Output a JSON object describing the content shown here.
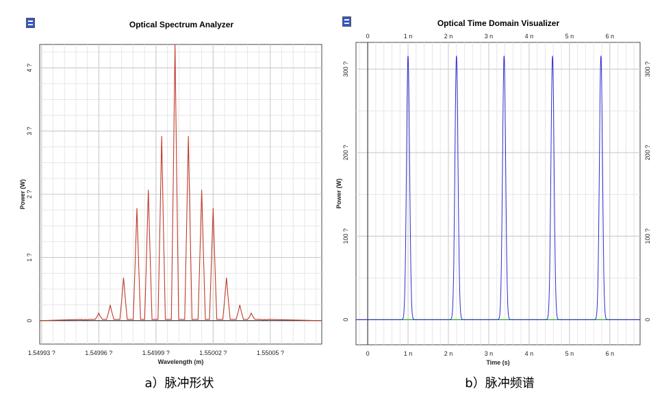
{
  "captions": {
    "a": "a）脉冲形状",
    "b": "b）脉冲频谱"
  },
  "chart_data": [
    {
      "type": "line",
      "title": "Optical Spectrum Analyzer",
      "xlabel": "Wavelength (m)",
      "ylabel": "Power (W)",
      "xlim": [
        1.549929,
        1.550077
      ],
      "ylim": [
        -0.37,
        4.37
      ],
      "xticks": [
        1.54993,
        1.54996,
        1.54999,
        1.55002,
        1.55005
      ],
      "xtick_labels": [
        "1.54993 ?",
        "1.54996 ?",
        "1.54999 ?",
        "1.55002 ?",
        "1.55005 ?"
      ],
      "yticks": [
        0,
        1,
        2,
        3,
        4
      ],
      "ytick_labels": [
        "0",
        "1 ?",
        "2 ?",
        "3 ?",
        "4 ?"
      ],
      "grid": true,
      "color": "#c0392b",
      "peaks": {
        "x": [
          1.549953,
          1.54996,
          1.549966,
          1.549973,
          1.54998,
          1.549986,
          1.549993,
          1.55,
          1.550007,
          1.550014,
          1.55002,
          1.550027,
          1.550034,
          1.55004,
          1.550047
        ],
        "y": [
          0.02,
          0.12,
          0.25,
          0.68,
          1.78,
          2.07,
          2.92,
          4.37,
          2.92,
          2.07,
          1.78,
          0.68,
          0.25,
          0.12,
          0.02
        ]
      }
    },
    {
      "type": "line",
      "title": "Optical Time Domain Visualizer",
      "xlabel": "Time (s)",
      "ylabel": "Power (W)",
      "xlim": [
        -0.29,
        6.75
      ],
      "ylim": [
        -30,
        332
      ],
      "xticks": [
        0,
        1,
        2,
        3,
        4,
        5,
        6
      ],
      "xtick_labels": [
        "0",
        "1 n",
        "2 n",
        "3 n",
        "4 n",
        "5 n",
        "6 n"
      ],
      "yticks": [
        0,
        100,
        200,
        300
      ],
      "ytick_labels": [
        "0",
        "100 ?",
        "200 ?",
        "300 ?"
      ],
      "grid": true,
      "color": "#2a2ad0",
      "baseline_color": "#22bb22",
      "pulses": {
        "center_ns": [
          1.0,
          2.2,
          3.38,
          4.58,
          5.78
        ],
        "peak_w": [
          316,
          316,
          316,
          316,
          316
        ],
        "fwhm_ns": 0.09
      }
    }
  ]
}
